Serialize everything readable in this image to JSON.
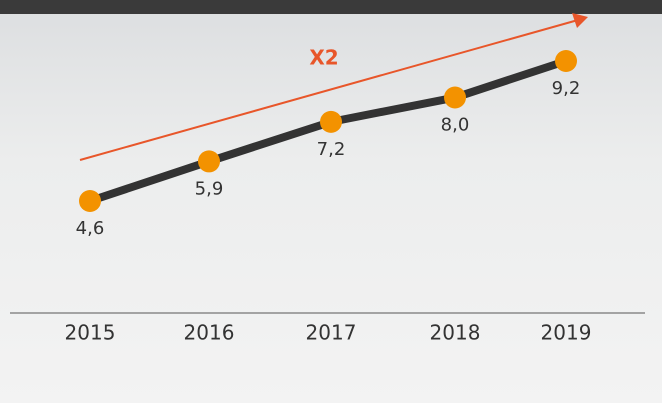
{
  "chart_data": {
    "type": "line",
    "categories": [
      "2015",
      "2016",
      "2017",
      "2018",
      "2019"
    ],
    "values": [
      4.6,
      5.9,
      7.2,
      8.0,
      9.2
    ],
    "value_labels": [
      "4,6",
      "5,9",
      "7,2",
      "8,0",
      "9,2"
    ],
    "line_color": "#333333",
    "marker_color": "#f39200",
    "annotation": {
      "text": "X2",
      "color": "#e8562a"
    }
  }
}
